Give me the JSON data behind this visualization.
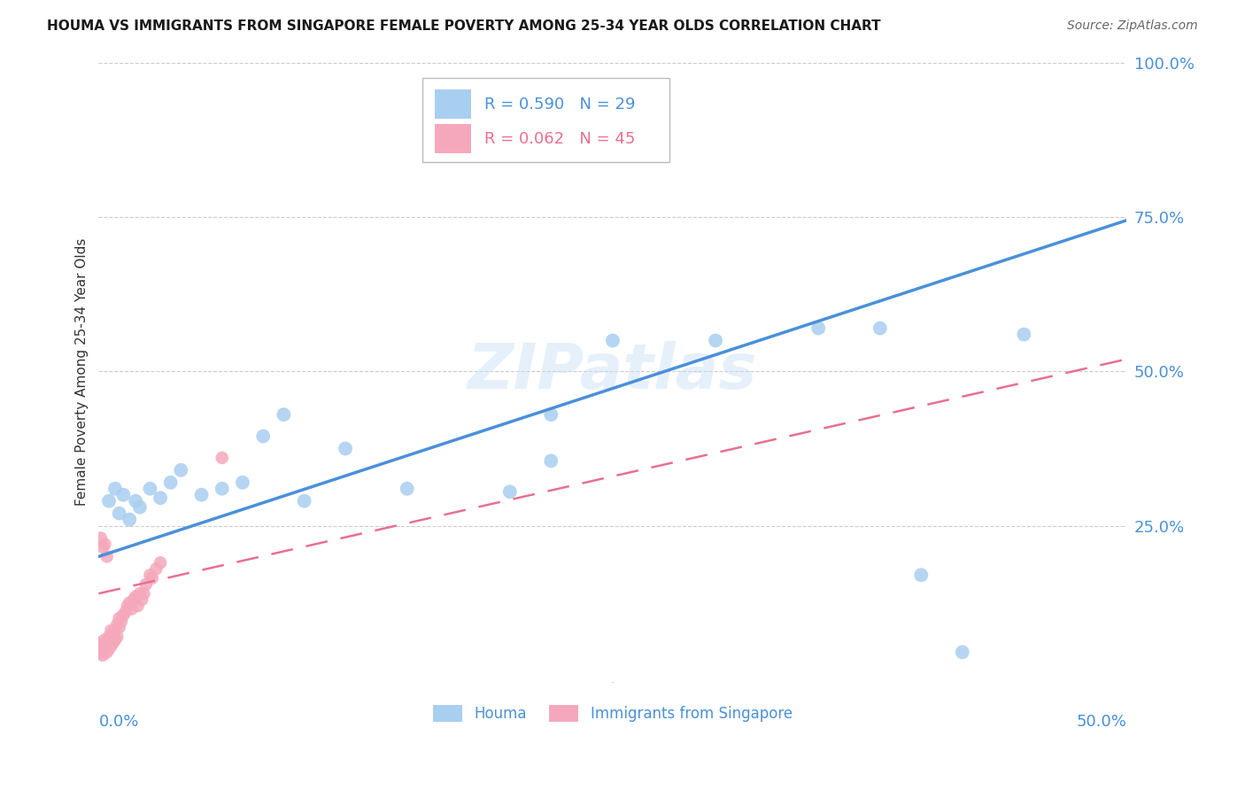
{
  "title": "HOUMA VS IMMIGRANTS FROM SINGAPORE FEMALE POVERTY AMONG 25-34 YEAR OLDS CORRELATION CHART",
  "source": "Source: ZipAtlas.com",
  "ylabel": "Female Poverty Among 25-34 Year Olds",
  "xlim": [
    0.0,
    0.5
  ],
  "ylim": [
    0.0,
    1.0
  ],
  "yticks": [
    0.0,
    0.25,
    0.5,
    0.75,
    1.0
  ],
  "ytick_labels": [
    "",
    "25.0%",
    "50.0%",
    "75.0%",
    "100.0%"
  ],
  "watermark": "ZIPatlas",
  "houma_R": 0.59,
  "houma_N": 29,
  "singapore_R": 0.062,
  "singapore_N": 45,
  "houma_color": "#a8cef0",
  "singapore_color": "#f5a8bc",
  "houma_line_color": "#4a90d9",
  "singapore_line_color": "#e87090",
  "houma_x": [
    0.005,
    0.008,
    0.01,
    0.012,
    0.015,
    0.018,
    0.02,
    0.025,
    0.03,
    0.035,
    0.04,
    0.05,
    0.06,
    0.07,
    0.08,
    0.09,
    0.1,
    0.12,
    0.15,
    0.2,
    0.22,
    0.25,
    0.3,
    0.35,
    0.38,
    0.4,
    0.42,
    0.45,
    0.22
  ],
  "houma_y": [
    0.29,
    0.31,
    0.27,
    0.3,
    0.26,
    0.29,
    0.28,
    0.31,
    0.295,
    0.32,
    0.34,
    0.3,
    0.31,
    0.32,
    0.395,
    0.43,
    0.29,
    0.375,
    0.31,
    0.305,
    0.355,
    0.55,
    0.55,
    0.57,
    0.57,
    0.17,
    0.045,
    0.56,
    0.43
  ],
  "singapore_x": [
    0.0,
    0.001,
    0.001,
    0.002,
    0.002,
    0.003,
    0.003,
    0.004,
    0.004,
    0.005,
    0.005,
    0.005,
    0.006,
    0.006,
    0.006,
    0.007,
    0.007,
    0.008,
    0.008,
    0.009,
    0.009,
    0.01,
    0.01,
    0.011,
    0.012,
    0.013,
    0.014,
    0.015,
    0.016,
    0.017,
    0.018,
    0.019,
    0.02,
    0.021,
    0.022,
    0.023,
    0.025,
    0.026,
    0.028,
    0.03,
    0.001,
    0.002,
    0.003,
    0.06,
    0.004
  ],
  "singapore_y": [
    0.06,
    0.055,
    0.045,
    0.05,
    0.04,
    0.065,
    0.055,
    0.06,
    0.045,
    0.07,
    0.06,
    0.05,
    0.08,
    0.065,
    0.055,
    0.075,
    0.06,
    0.08,
    0.065,
    0.09,
    0.07,
    0.1,
    0.085,
    0.095,
    0.105,
    0.11,
    0.12,
    0.125,
    0.115,
    0.13,
    0.135,
    0.12,
    0.14,
    0.13,
    0.14,
    0.155,
    0.17,
    0.165,
    0.18,
    0.19,
    0.23,
    0.215,
    0.22,
    0.36,
    0.2
  ],
  "houma_line_x0": 0.0,
  "houma_line_y0": 0.2,
  "houma_line_x1": 0.5,
  "houma_line_y1": 0.745,
  "sing_line_x0": 0.0,
  "sing_line_y0": 0.14,
  "sing_line_x1": 0.5,
  "sing_line_y1": 0.52
}
